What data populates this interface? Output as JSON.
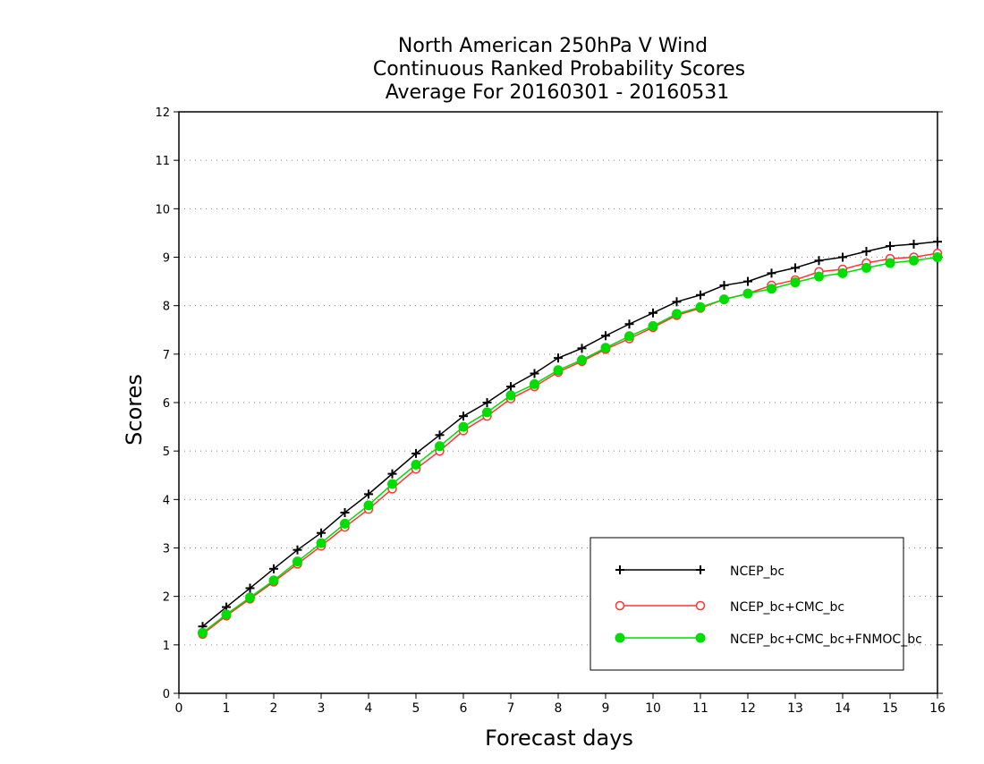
{
  "chart_data": {
    "type": "line",
    "title_lines": [
      "North American 250hPa V Wind",
      "Continuous Ranked Probability Scores",
      "Average For 20160301 - 20160531"
    ],
    "xlabel": "Forecast days",
    "ylabel": "Scores",
    "xlim": [
      0,
      16
    ],
    "ylim": [
      0,
      12
    ],
    "xticks": [
      "0",
      "1",
      "2",
      "3",
      "4",
      "5",
      "6",
      "7",
      "8",
      "9",
      "10",
      "11",
      "12",
      "13",
      "14",
      "15",
      "16"
    ],
    "yticks": [
      "0",
      "1",
      "2",
      "3",
      "4",
      "5",
      "6",
      "7",
      "8",
      "9",
      "10",
      "11",
      "12"
    ],
    "grid": "horizontal dotted",
    "legend_position": "bottom-right",
    "x": [
      0.5,
      1,
      1.5,
      2,
      2.5,
      3,
      3.5,
      4,
      4.5,
      5,
      5.5,
      6,
      6.5,
      7,
      7.5,
      8,
      8.5,
      9,
      9.5,
      10,
      10.5,
      11,
      11.5,
      12,
      12.5,
      13,
      13.5,
      14,
      14.5,
      15,
      15.5,
      16
    ],
    "series": [
      {
        "name": "NCEP_bc",
        "color": "#000000",
        "marker": "plus",
        "values": [
          1.38,
          1.78,
          2.17,
          2.57,
          2.96,
          3.31,
          3.73,
          4.11,
          4.53,
          4.95,
          5.33,
          5.72,
          6.0,
          6.33,
          6.6,
          6.92,
          7.12,
          7.38,
          7.62,
          7.85,
          8.08,
          8.22,
          8.42,
          8.5,
          8.67,
          8.78,
          8.93,
          9.0,
          9.12,
          9.23,
          9.27,
          9.32
        ]
      },
      {
        "name": "NCEP_bc+CMC_bc",
        "color": "#ff3333",
        "marker": "open-circle",
        "values": [
          1.22,
          1.6,
          1.95,
          2.3,
          2.67,
          3.04,
          3.43,
          3.8,
          4.22,
          4.63,
          5.0,
          5.42,
          5.72,
          6.08,
          6.33,
          6.63,
          6.85,
          7.1,
          7.32,
          7.55,
          7.8,
          7.95,
          8.13,
          8.25,
          8.42,
          8.53,
          8.7,
          8.75,
          8.88,
          8.97,
          9.0,
          9.08
        ]
      },
      {
        "name": "NCEP_bc+CMC_bc+FNMOC_bc",
        "color": "#00dd00",
        "marker": "filled-circle",
        "values": [
          1.25,
          1.63,
          1.98,
          2.33,
          2.72,
          3.1,
          3.5,
          3.88,
          4.32,
          4.72,
          5.1,
          5.5,
          5.8,
          6.15,
          6.38,
          6.67,
          6.88,
          7.13,
          7.37,
          7.58,
          7.83,
          7.97,
          8.13,
          8.25,
          8.35,
          8.48,
          8.6,
          8.67,
          8.78,
          8.88,
          8.93,
          9.0
        ]
      }
    ]
  }
}
